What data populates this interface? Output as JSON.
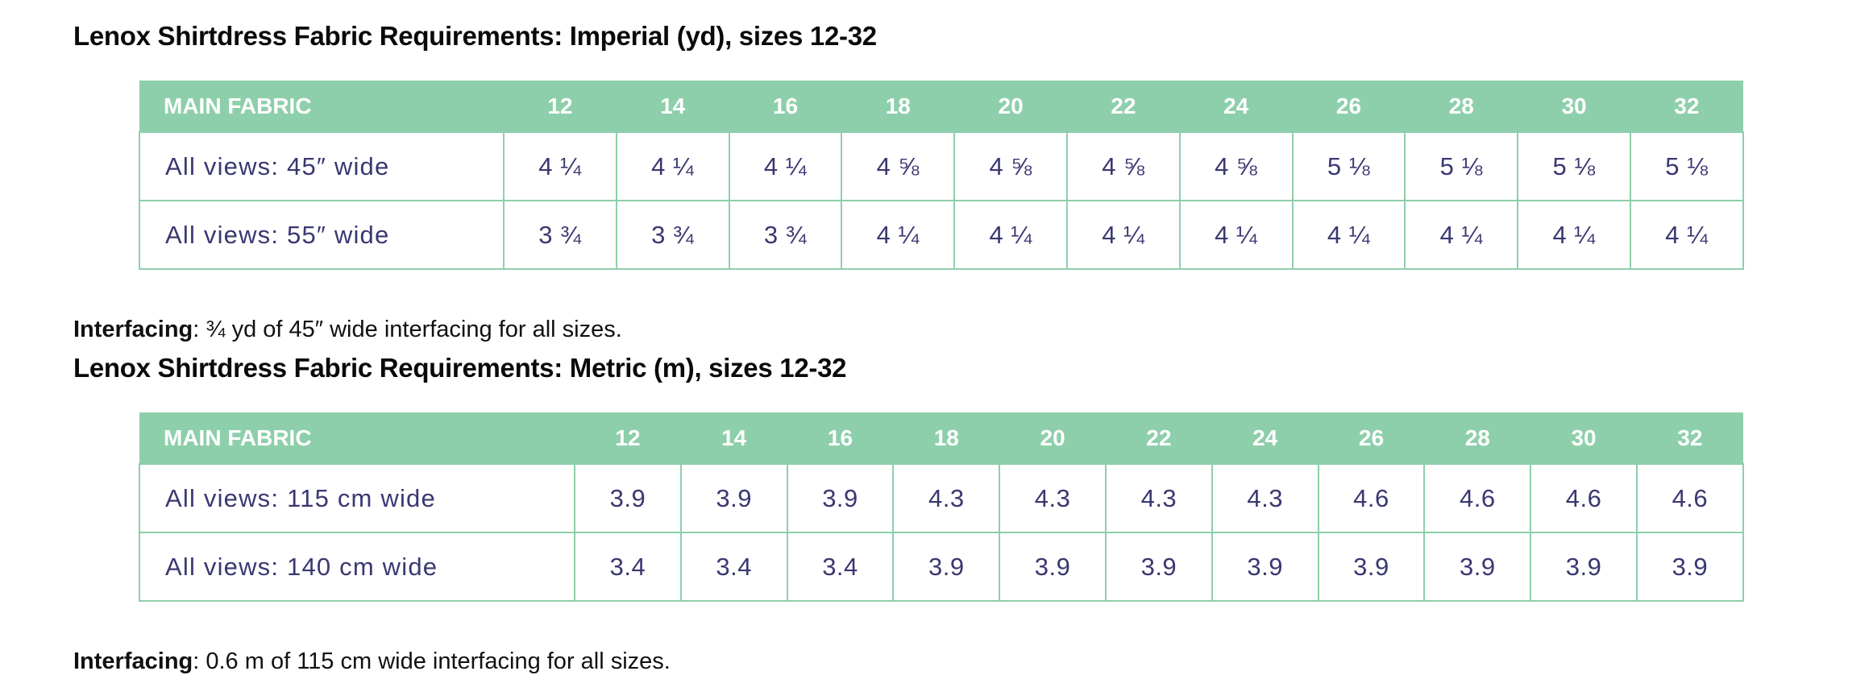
{
  "imperial": {
    "title": "Lenox Shirtdress Fabric Requirements: Imperial (yd), sizes 12-32",
    "header_label": "MAIN FABRIC",
    "sizes": [
      "12",
      "14",
      "16",
      "18",
      "20",
      "22",
      "24",
      "26",
      "28",
      "30",
      "32"
    ],
    "rows": [
      {
        "label": "All views: 45″ wide",
        "values": [
          "4 ¼",
          "4 ¼",
          "4 ¼",
          "4 ⅝",
          "4 ⅝",
          "4 ⅝",
          "4 ⅝",
          "5 ⅛",
          "5 ⅛",
          "5 ⅛",
          "5 ⅛"
        ]
      },
      {
        "label": "All views: 55″ wide",
        "values": [
          "3 ¾",
          "3 ¾",
          "3 ¾",
          "4 ¼",
          "4 ¼",
          "4 ¼",
          "4 ¼",
          "4 ¼",
          "4 ¼",
          "4 ¼",
          "4 ¼"
        ]
      }
    ],
    "note_label": "Interfacing",
    "note_text": ": ¾ yd of 45″ wide interfacing for all sizes."
  },
  "metric": {
    "title": "Lenox Shirtdress Fabric Requirements: Metric (m), sizes 12-32",
    "header_label": "MAIN FABRIC",
    "sizes": [
      "12",
      "14",
      "16",
      "18",
      "20",
      "22",
      "24",
      "26",
      "28",
      "30",
      "32"
    ],
    "rows": [
      {
        "label": "All views: 115 cm wide",
        "values": [
          "3.9",
          "3.9",
          "3.9",
          "4.3",
          "4.3",
          "4.3",
          "4.3",
          "4.6",
          "4.6",
          "4.6",
          "4.6"
        ]
      },
      {
        "label": "All views: 140 cm wide",
        "values": [
          "3.4",
          "3.4",
          "3.4",
          "3.9",
          "3.9",
          "3.9",
          "3.9",
          "3.9",
          "3.9",
          "3.9",
          "3.9"
        ]
      }
    ],
    "note_label": "Interfacing",
    "note_text": ": 0.6 m of 115 cm wide interfacing for all sizes."
  },
  "colors": {
    "header_bg": "#8ecfab",
    "header_text": "#ffffff",
    "cell_text": "#3a3870",
    "border": "#8ecfab"
  }
}
